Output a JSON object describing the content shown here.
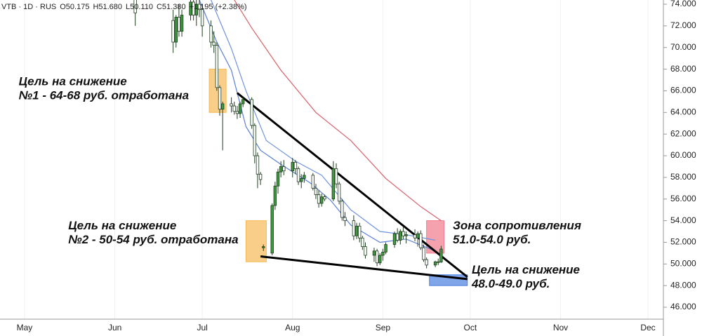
{
  "chart_data": {
    "type": "candlestick",
    "header": [
      "VTB · 1D · RUS",
      "O50.175",
      "H51.680",
      "L50.110",
      "C51.380",
      "+1.195 (+2.38%)"
    ],
    "xlim": [
      -8.43,
      219.3
    ],
    "xticks": [
      {
        "value": 0,
        "label": "May"
      },
      {
        "value": 31,
        "label": "Jun"
      },
      {
        "value": 61,
        "label": "Jul"
      },
      {
        "value": 92,
        "label": "Aug"
      },
      {
        "value": 123,
        "label": "Sep"
      },
      {
        "value": 153,
        "label": "Oct"
      },
      {
        "value": 184,
        "label": "Nov"
      },
      {
        "value": 214,
        "label": "Dec"
      }
    ],
    "ylim": [
      44.9,
      74.39
    ],
    "yticks": [
      {
        "value": 46,
        "label": "46.000"
      },
      {
        "value": 48,
        "label": "48.000"
      },
      {
        "value": 50,
        "label": "50.000"
      },
      {
        "value": 52,
        "label": "52.000"
      },
      {
        "value": 54,
        "label": "54.000"
      },
      {
        "value": 56,
        "label": "56.000"
      },
      {
        "value": 58,
        "label": "58.000"
      },
      {
        "value": 60,
        "label": "60.000"
      },
      {
        "value": 62,
        "label": "62.000"
      },
      {
        "value": 64,
        "label": "64.000"
      },
      {
        "value": 66,
        "label": "66.000"
      },
      {
        "value": 68,
        "label": "68.000"
      },
      {
        "value": 70,
        "label": "70.000"
      },
      {
        "value": 72,
        "label": "72.000"
      },
      {
        "value": 74,
        "label": "74.000"
      }
    ],
    "grid": true,
    "up_color": "#3f9a3f",
    "down_color": "#ffffff",
    "x": [
      38,
      51,
      52,
      53,
      54,
      57,
      58,
      59,
      60,
      61,
      64,
      65,
      66,
      67,
      68,
      71,
      72,
      73,
      74,
      75,
      78,
      79,
      80,
      81,
      82,
      85,
      86,
      87,
      88,
      89,
      92,
      93,
      94,
      95,
      96,
      99,
      100,
      101,
      102,
      103,
      106,
      107,
      108,
      109,
      110,
      113,
      114,
      115,
      116,
      117,
      120,
      121,
      122,
      123,
      124,
      127,
      128,
      129,
      130,
      131,
      134,
      135,
      136,
      137,
      138,
      141,
      142,
      143
    ],
    "open": [
      74.5,
      72.5,
      70.5,
      72.8,
      71.5,
      73,
      74.2,
      73,
      74,
      73.5,
      72,
      70.5,
      70.2,
      66.3,
      64.3,
      64.8,
      64.6,
      64.1,
      63.9,
      64.8,
      65.2,
      62.8,
      60,
      58.3,
      51.5,
      51,
      55.4,
      57.2,
      58.5,
      59,
      58.6,
      59.4,
      58.8,
      57.6,
      57.9,
      58.2,
      57,
      56.4,
      55.6,
      56.2,
      56,
      58.8,
      57.4,
      55.8,
      54.3,
      54,
      52.6,
      53.5,
      52.4,
      51.6,
      50.8,
      51.2,
      50.1,
      50.8,
      51.1,
      51.8,
      52.8,
      52.2,
      53,
      52.6,
      52.7,
      52.4,
      52.8,
      51.5,
      50.4,
      49.9,
      50.2,
      50.175
    ],
    "high": [
      75,
      73.5,
      73,
      74,
      73.5,
      75,
      75,
      74.5,
      75,
      74,
      72.5,
      71.5,
      70.5,
      66.5,
      65,
      65.4,
      65,
      64.6,
      65,
      65.5,
      65.4,
      63,
      60.3,
      58.5,
      51.8,
      55.6,
      57.6,
      58.8,
      59.5,
      59.6,
      59.8,
      59.6,
      59,
      58.3,
      58.5,
      58.4,
      57.4,
      56.8,
      56.5,
      56.4,
      59.5,
      59.3,
      57.6,
      56,
      54.8,
      54.5,
      53.8,
      53.8,
      52.6,
      52,
      51.5,
      51.4,
      51,
      51.4,
      52,
      53,
      53.3,
      53.2,
      53.4,
      53,
      53.2,
      53,
      53.1,
      51.8,
      50.6,
      50.3,
      50.5,
      51.68
    ],
    "low": [
      72,
      69.5,
      70,
      71,
      71,
      72.5,
      72.5,
      72,
      72.8,
      71,
      70,
      69.5,
      66,
      63.7,
      60.5,
      64,
      63.8,
      63.4,
      63.5,
      64.5,
      62.5,
      59.3,
      57,
      57.3,
      51.2,
      50.8,
      55,
      56.5,
      58,
      58.2,
      58,
      58.3,
      57.3,
      57,
      57.5,
      56.8,
      56,
      55.2,
      55.3,
      55.8,
      55.8,
      57,
      55.5,
      54,
      53.5,
      52.2,
      52.3,
      52,
      51.3,
      50.5,
      50.2,
      49.8,
      49.9,
      50.3,
      50.9,
      51.5,
      52,
      51.8,
      52.3,
      51.9,
      52.1,
      51.6,
      51.3,
      50.2,
      49.6,
      49.7,
      49.9,
      50.11
    ],
    "close": [
      73.2,
      70.5,
      72.8,
      71.5,
      73,
      74.2,
      73,
      74,
      73.5,
      72,
      70.5,
      70.2,
      66.3,
      64.3,
      64.8,
      64.6,
      64.1,
      63.9,
      64.8,
      65.2,
      62.8,
      60,
      58.3,
      57.8,
      51.6,
      55.4,
      57.2,
      58.5,
      59,
      58.6,
      59.4,
      58.8,
      57.6,
      57.9,
      58.2,
      57,
      56.4,
      55.6,
      56.2,
      56,
      58.8,
      57.4,
      55.8,
      54.3,
      54,
      52.6,
      53.5,
      52.4,
      51.6,
      50.8,
      51.2,
      50.1,
      50.8,
      51.1,
      51.8,
      52.8,
      52.2,
      53,
      52.6,
      52.7,
      52.4,
      52.8,
      51.5,
      50.4,
      49.9,
      50.2,
      50.2,
      51.38
    ],
    "lines": [
      {
        "color": "#5b7fd6",
        "x": [
          60,
          66,
          71,
          76,
          81,
          88,
          98,
          105,
          112,
          122,
          131,
          141
        ],
        "values": [
          74.4,
          70.5,
          67.9,
          62.7,
          60.5,
          59.2,
          57.5,
          55.9,
          53.6,
          52,
          52.3,
          51.2
        ]
      },
      {
        "color": "#6f93e0",
        "x": [
          64,
          71,
          76,
          83,
          93,
          102,
          112,
          122,
          131,
          141
        ],
        "values": [
          74.4,
          69.9,
          66,
          61.4,
          59.5,
          58.2,
          55,
          53,
          52.7,
          52.2
        ]
      },
      {
        "color": "#d9606a",
        "x": [
          72,
          78,
          88,
          100,
          112,
          124,
          136,
          143
        ],
        "values": [
          74.4,
          71.8,
          67.9,
          64,
          61.4,
          57.9,
          55.3,
          54
        ]
      },
      {
        "color": "#000000",
        "x": [
          73,
          152
        ],
        "values": [
          65.8,
          48.8
        ]
      },
      {
        "color": "#000000",
        "x": [
          81,
          152
        ],
        "values": [
          50.7,
          48.6
        ]
      }
    ],
    "zones": [
      {
        "color": "#f7b955",
        "x": [
          63.4,
          69.2
        ],
        "values": [
          64,
          68
        ]
      },
      {
        "color": "#f7b955",
        "x": [
          76,
          83
        ],
        "values": [
          50.2,
          54
        ]
      },
      {
        "color": "#f27a8c",
        "x": [
          138,
          144
        ],
        "values": [
          51,
          54
        ]
      },
      {
        "color": "#4a7fe0",
        "x": [
          139,
          152
        ],
        "values": [
          48,
          49
        ]
      }
    ],
    "annotations": [
      {
        "lines": [
          "Цель на снижение",
          "№1 - 64-68 руб. отработана"
        ],
        "x": -2,
        "y": 66.5
      },
      {
        "lines": [
          "Цель на снижение",
          "№2 - 50-54 руб. отработана"
        ],
        "x": 15,
        "y": 53.2
      },
      {
        "lines": [
          "Зона сопротивления",
          "51.0-54.0 руб."
        ],
        "x": 147,
        "y": 53.2
      },
      {
        "lines": [
          "Цель на снижение",
          "48.0-49.0 руб."
        ],
        "x": 153.5,
        "y": 49.1
      }
    ]
  }
}
